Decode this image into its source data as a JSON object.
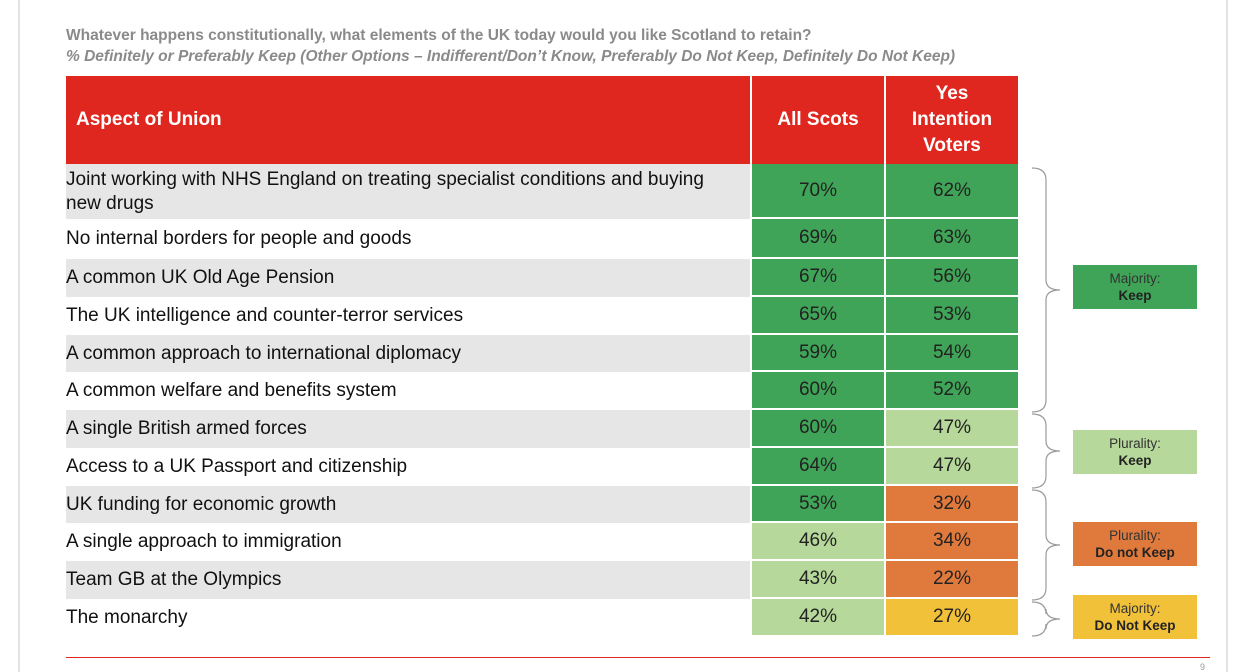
{
  "title": "Whatever happens constitutionally, what elements of the UK today would you like Scotland to retain?",
  "subtitle": "% Definitely or Preferably Keep (Other Options – Indifferent/Don’t Know, Preferably Do Not Keep, Definitely Do Not Keep)",
  "colors": {
    "header_red": "#e0271f",
    "majority_keep": "#3fa457",
    "plurality_keep": "#b6d89a",
    "plurality_do_not_keep": "#e07a3c",
    "majority_do_not_keep": "#f2c13a"
  },
  "chart_data": {
    "type": "table",
    "columns": [
      "Aspect of Union",
      "All Scots",
      "Yes Intention Voters"
    ],
    "header": {
      "aspect": "Aspect of Union",
      "all_scots": "All Scots",
      "yes_line1": "Yes",
      "yes_line2": "Intention",
      "yes_line3": "Voters"
    },
    "rows": [
      {
        "aspect": "Joint working with NHS England on treating specialist conditions and buying new drugs",
        "all_scots": "70%",
        "all_scots_value": 70,
        "all_cat": "majority_keep",
        "yes": "62%",
        "yes_value": 62,
        "yes_cat": "majority_keep"
      },
      {
        "aspect": "No internal borders for people and goods",
        "all_scots": "69%",
        "all_scots_value": 69,
        "all_cat": "majority_keep",
        "yes": "63%",
        "yes_value": 63,
        "yes_cat": "majority_keep"
      },
      {
        "aspect": "A common UK Old Age Pension",
        "all_scots": "67%",
        "all_scots_value": 67,
        "all_cat": "majority_keep",
        "yes": "56%",
        "yes_value": 56,
        "yes_cat": "majority_keep"
      },
      {
        "aspect": "The UK intelligence and counter-terror services",
        "all_scots": "65%",
        "all_scots_value": 65,
        "all_cat": "majority_keep",
        "yes": "53%",
        "yes_value": 53,
        "yes_cat": "majority_keep"
      },
      {
        "aspect": "A common approach to international diplomacy",
        "all_scots": "59%",
        "all_scots_value": 59,
        "all_cat": "majority_keep",
        "yes": "54%",
        "yes_value": 54,
        "yes_cat": "majority_keep"
      },
      {
        "aspect": "A common welfare and benefits system",
        "all_scots": "60%",
        "all_scots_value": 60,
        "all_cat": "majority_keep",
        "yes": "52%",
        "yes_value": 52,
        "yes_cat": "majority_keep"
      },
      {
        "aspect": "A single British armed forces",
        "all_scots": "60%",
        "all_scots_value": 60,
        "all_cat": "majority_keep",
        "yes": "47%",
        "yes_value": 47,
        "yes_cat": "plurality_keep"
      },
      {
        "aspect": "Access to a UK Passport and citizenship",
        "all_scots": "64%",
        "all_scots_value": 64,
        "all_cat": "majority_keep",
        "yes": "47%",
        "yes_value": 47,
        "yes_cat": "plurality_keep"
      },
      {
        "aspect": "UK funding for economic growth",
        "all_scots": "53%",
        "all_scots_value": 53,
        "all_cat": "majority_keep",
        "yes": "32%",
        "yes_value": 32,
        "yes_cat": "plurality_do_not_keep"
      },
      {
        "aspect": "A single approach to immigration",
        "all_scots": "46%",
        "all_scots_value": 46,
        "all_cat": "plurality_keep",
        "yes": "34%",
        "yes_value": 34,
        "yes_cat": "plurality_do_not_keep"
      },
      {
        "aspect": "Team GB at the Olympics",
        "all_scots": "43%",
        "all_scots_value": 43,
        "all_cat": "plurality_keep",
        "yes": "22%",
        "yes_value": 22,
        "yes_cat": "plurality_do_not_keep"
      },
      {
        "aspect": "The monarchy",
        "all_scots": "42%",
        "all_scots_value": 42,
        "all_cat": "plurality_keep",
        "yes": "27%",
        "yes_value": 27,
        "yes_cat": "majority_do_not_keep"
      }
    ],
    "legend": [
      {
        "key": "majority_keep",
        "line1": "Majority:",
        "line2": "Keep"
      },
      {
        "key": "plurality_keep",
        "line1": "Plurality:",
        "line2": "Keep"
      },
      {
        "key": "plurality_do_not_keep",
        "line1": "Plurality:",
        "line2": "Do not Keep"
      },
      {
        "key": "majority_do_not_keep",
        "line1": "Majority:",
        "line2": "Do Not Keep"
      }
    ]
  },
  "page_number": "9"
}
